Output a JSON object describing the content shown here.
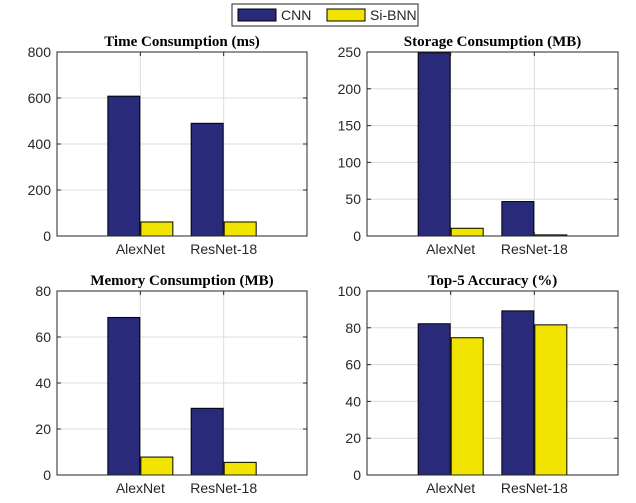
{
  "legend": {
    "items": [
      {
        "name": "CNN",
        "color": "#2a2a7a"
      },
      {
        "name": "Si-BNN",
        "color": "#f0e400"
      }
    ]
  },
  "chart_data": [
    {
      "type": "bar",
      "title": "Time Consumption (ms)",
      "categories": [
        "AlexNet",
        "ResNet-18"
      ],
      "series": [
        {
          "name": "CNN",
          "values": [
            608,
            490
          ]
        },
        {
          "name": "Si-BNN",
          "values": [
            61,
            61
          ]
        }
      ],
      "ylim": [
        0,
        800
      ],
      "yticks": [
        0,
        200,
        400,
        600,
        800
      ],
      "grid": true
    },
    {
      "type": "bar",
      "title": "Storage Consumption (MB)",
      "categories": [
        "AlexNet",
        "ResNet-18"
      ],
      "series": [
        {
          "name": "CNN",
          "values": [
            249,
            46.8
          ]
        },
        {
          "name": "Si-BNN",
          "values": [
            10.5,
            1.5
          ]
        }
      ],
      "ylim": [
        0,
        250
      ],
      "yticks": [
        0,
        50,
        100,
        150,
        200,
        250
      ],
      "grid": true
    },
    {
      "type": "bar",
      "title": "Memory Consumption (MB)",
      "categories": [
        "AlexNet",
        "ResNet-18"
      ],
      "series": [
        {
          "name": "CNN",
          "values": [
            68.5,
            29
          ]
        },
        {
          "name": "Si-BNN",
          "values": [
            7.8,
            5.5
          ]
        }
      ],
      "ylim": [
        0,
        80
      ],
      "yticks": [
        0,
        20,
        40,
        60,
        80
      ],
      "grid": true
    },
    {
      "type": "bar",
      "title": "Top-5 Accuracy (%)",
      "categories": [
        "AlexNet",
        "ResNet-18"
      ],
      "series": [
        {
          "name": "CNN",
          "values": [
            82.2,
            89.2
          ]
        },
        {
          "name": "Si-BNN",
          "values": [
            74.6,
            81.6
          ]
        }
      ],
      "ylim": [
        0,
        100
      ],
      "yticks": [
        0,
        20,
        40,
        60,
        80,
        100
      ],
      "grid": true
    }
  ]
}
